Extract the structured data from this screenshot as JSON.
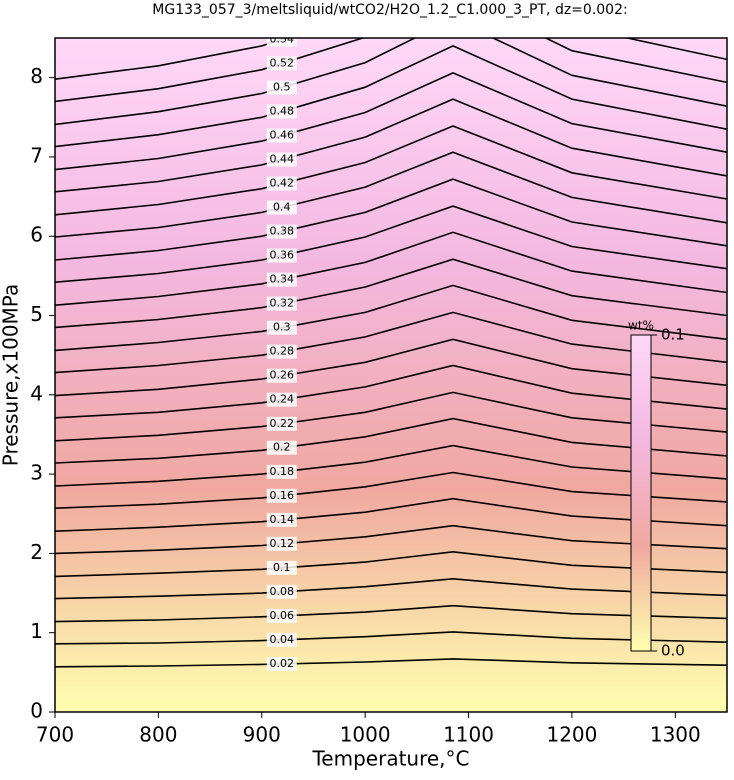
{
  "chart_data": {
    "type": "contour",
    "title": "MG133_057_3/meltsliquid/wtCO2/H2O_1.2_C1.000_3_PT, dz=0.002:",
    "xlabel": "Temperature,°C",
    "ylabel": "Pressure,x100MPa",
    "xlim": [
      700,
      1350
    ],
    "ylim": [
      0,
      8.5
    ],
    "xticks": [
      700,
      800,
      900,
      1000,
      1100,
      1200,
      1300
    ],
    "yticks": [
      0,
      1,
      2,
      3,
      4,
      5,
      6,
      7,
      8
    ],
    "x": [
      700,
      800,
      900,
      1000,
      1085,
      1200,
      1350
    ],
    "line_color": "#000000",
    "colormap": [
      "#ffffb0",
      "#f0a8a0",
      "#f4b8e0",
      "#ffd8f8"
    ],
    "contours": [
      {
        "level": 0.02,
        "values": [
          0.57,
          0.58,
          0.6,
          0.63,
          0.67,
          0.62,
          0.59
        ]
      },
      {
        "level": 0.04,
        "values": [
          0.86,
          0.87,
          0.9,
          0.95,
          1.01,
          0.93,
          0.88
        ]
      },
      {
        "level": 0.06,
        "values": [
          1.14,
          1.16,
          1.2,
          1.26,
          1.34,
          1.24,
          1.18
        ]
      },
      {
        "level": 0.08,
        "values": [
          1.43,
          1.46,
          1.5,
          1.58,
          1.68,
          1.55,
          1.47
        ]
      },
      {
        "level": 0.1,
        "values": [
          1.71,
          1.75,
          1.8,
          1.89,
          2.02,
          1.85,
          1.76
        ]
      },
      {
        "level": 0.12,
        "values": [
          2.0,
          2.04,
          2.1,
          2.21,
          2.35,
          2.16,
          2.06
        ]
      },
      {
        "level": 0.14,
        "values": [
          2.28,
          2.33,
          2.4,
          2.52,
          2.69,
          2.47,
          2.35
        ]
      },
      {
        "level": 0.16,
        "values": [
          2.57,
          2.62,
          2.7,
          2.84,
          3.02,
          2.78,
          2.65
        ]
      },
      {
        "level": 0.18,
        "values": [
          2.85,
          2.91,
          3.0,
          3.15,
          3.36,
          3.09,
          2.94
        ]
      },
      {
        "level": 0.2,
        "values": [
          3.14,
          3.2,
          3.3,
          3.47,
          3.7,
          3.4,
          3.23
        ]
      },
      {
        "level": 0.22,
        "values": [
          3.42,
          3.49,
          3.6,
          3.78,
          4.03,
          3.71,
          3.53
        ]
      },
      {
        "level": 0.24,
        "values": [
          3.71,
          3.78,
          3.9,
          4.1,
          4.37,
          4.02,
          3.82
        ]
      },
      {
        "level": 0.26,
        "values": [
          3.99,
          4.07,
          4.2,
          4.41,
          4.7,
          4.33,
          4.12
        ]
      },
      {
        "level": 0.28,
        "values": [
          4.28,
          4.37,
          4.5,
          4.73,
          5.04,
          4.64,
          4.41
        ]
      },
      {
        "level": 0.3,
        "values": [
          4.56,
          4.66,
          4.8,
          5.04,
          5.38,
          4.94,
          4.7
        ]
      },
      {
        "level": 0.32,
        "values": [
          4.85,
          4.95,
          5.1,
          5.36,
          5.71,
          5.25,
          5.0
        ]
      },
      {
        "level": 0.34,
        "values": [
          5.13,
          5.24,
          5.4,
          5.67,
          6.05,
          5.56,
          5.29
        ]
      },
      {
        "level": 0.36,
        "values": [
          5.42,
          5.53,
          5.7,
          5.99,
          6.38,
          5.87,
          5.59
        ]
      },
      {
        "level": 0.38,
        "values": [
          5.7,
          5.82,
          6.0,
          6.3,
          6.72,
          6.18,
          5.88
        ]
      },
      {
        "level": 0.4,
        "values": [
          5.99,
          6.11,
          6.3,
          6.62,
          7.06,
          6.49,
          6.17
        ]
      },
      {
        "level": 0.42,
        "values": [
          6.27,
          6.4,
          6.6,
          6.93,
          7.39,
          6.8,
          6.47
        ]
      },
      {
        "level": 0.44,
        "values": [
          6.56,
          6.69,
          6.9,
          7.25,
          7.73,
          7.11,
          6.76
        ]
      },
      {
        "level": 0.46,
        "values": [
          6.84,
          6.98,
          7.2,
          7.56,
          8.06,
          7.42,
          7.06
        ]
      },
      {
        "level": 0.48,
        "values": [
          7.13,
          7.28,
          7.5,
          7.88,
          8.4,
          7.73,
          7.35
        ]
      },
      {
        "level": 0.5,
        "values": [
          7.41,
          7.57,
          7.8,
          8.19,
          8.74,
          8.03,
          7.64
        ]
      },
      {
        "level": 0.52,
        "values": [
          7.7,
          7.86,
          8.1,
          8.51,
          9.07,
          8.34,
          7.94
        ]
      },
      {
        "level": 0.54,
        "values": [
          7.98,
          8.15,
          8.4,
          8.82,
          9.41,
          8.65,
          8.23
        ]
      }
    ],
    "colorbar": {
      "title": "wt%",
      "lim": [
        0,
        0.1
      ],
      "ticks": [
        {
          "value": 0,
          "label": "0.0"
        },
        0.1
      ]
    }
  }
}
